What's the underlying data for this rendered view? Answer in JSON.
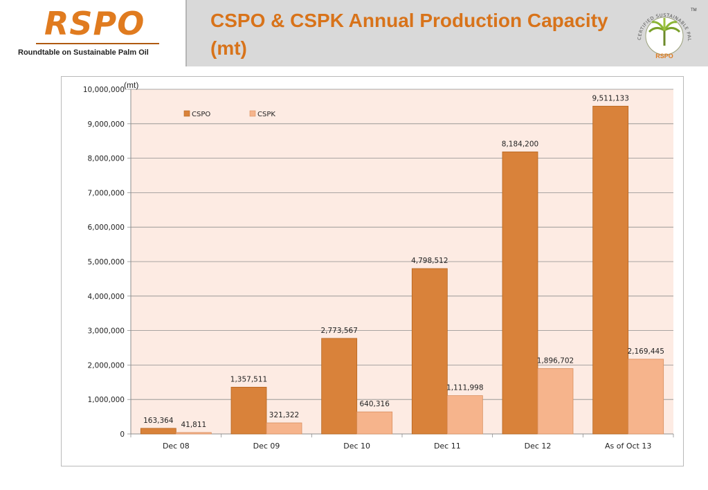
{
  "logo": {
    "name": "RSPO",
    "subtitle": "Roundtable on Sustainable Palm Oil"
  },
  "title": "CSPO & CSPK Annual Production Capacity (mt)",
  "seal": {
    "arc_text": "CERTIFIED SUSTAINABLE PALM OIL",
    "brand": "RSPO",
    "tm": "TM"
  },
  "colors": {
    "accent": "#d8731a",
    "cspo": "#d9823a",
    "cspk": "#f6b48c",
    "plot_bg": "#fdebe3"
  },
  "chart_data": {
    "type": "bar",
    "unit_label": "(mt)",
    "categories": [
      "Dec 08",
      "Dec 09",
      "Dec 10",
      "Dec 11",
      "Dec 12",
      "As of Oct 13"
    ],
    "series": [
      {
        "name": "CSPO",
        "values": [
          163364,
          1357511,
          2773567,
          4798512,
          8184200,
          9511133
        ],
        "labels": [
          "163,364",
          "1,357,511",
          "2,773,567",
          "4,798,512",
          "8,184,200",
          "9,511,133"
        ]
      },
      {
        "name": "CSPK",
        "values": [
          41811,
          321322,
          640316,
          1111998,
          1896702,
          2169445
        ],
        "labels": [
          "41,811",
          "321,322",
          "640,316",
          "1,111,998",
          "1,896,702",
          "2,169,445"
        ]
      }
    ],
    "ylim": [
      0,
      10000000
    ],
    "yticks": [
      0,
      1000000,
      2000000,
      3000000,
      4000000,
      5000000,
      6000000,
      7000000,
      8000000,
      9000000,
      10000000
    ],
    "ytick_labels": [
      "0",
      "1,000,000",
      "2,000,000",
      "3,000,000",
      "4,000,000",
      "5,000,000",
      "6,000,000",
      "7,000,000",
      "8,000,000",
      "9,000,000",
      "10,000,000"
    ],
    "grid": true,
    "legend_position": "top-left"
  }
}
